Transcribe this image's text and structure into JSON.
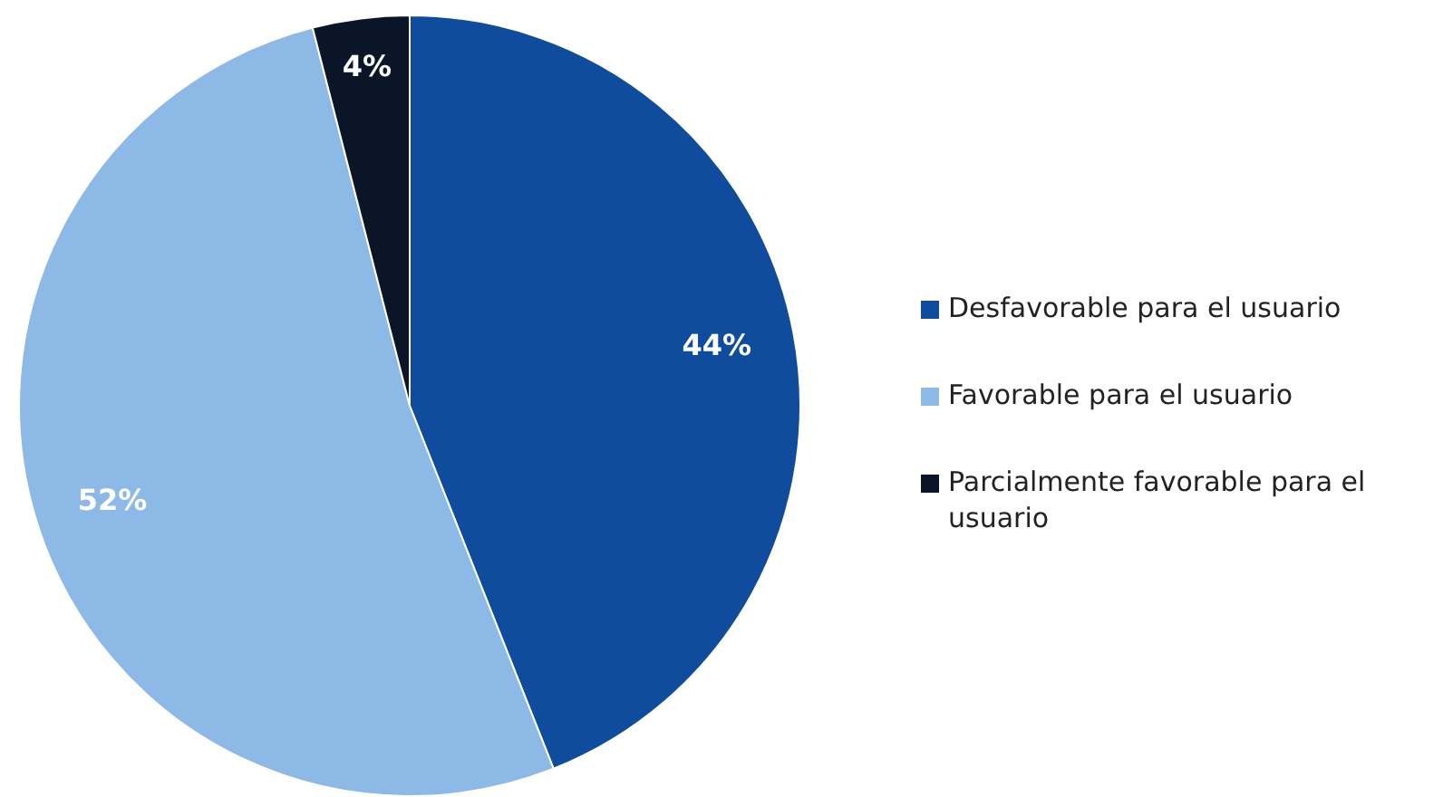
{
  "chart_data": {
    "type": "pie",
    "categories": [
      "Desfavorable para el usuario",
      "Favorable para el usuario",
      "Parcialmente favorable para el usuario"
    ],
    "values": [
      44,
      52,
      4
    ],
    "colors": [
      "#0f4c9e",
      "#8db9e6",
      "#0a1628"
    ],
    "value_labels": [
      "44%",
      "52%",
      "4%"
    ],
    "legend": "right"
  }
}
